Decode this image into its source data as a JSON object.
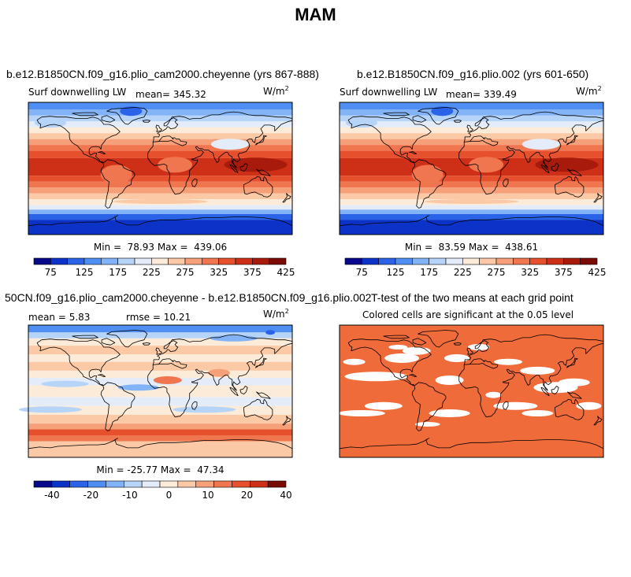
{
  "figure": {
    "title": "MAM"
  },
  "chart_data": [
    {
      "type": "heatmap",
      "title": "b.e12.B1850CN.f09_g16.plio_cam2000.cheyenne (yrs 867-888)",
      "variable": "Surf downwelling LW",
      "mean_text": "mean= 345.32",
      "units_base": "W/m",
      "units_exp": "2",
      "min": 78.93,
      "max": 439.06,
      "minmax_text": "Min =  78.93 Max =  439.06",
      "colorbar_labels": [
        "75",
        "125",
        "175",
        "225",
        "275",
        "325",
        "375",
        "425"
      ],
      "colorbar_colors": [
        "#08088c",
        "#0c33c8",
        "#2a63e8",
        "#4f8ef2",
        "#82b3f6",
        "#b6d3f8",
        "#e3ecf8",
        "#fcebd8",
        "#fbc9a6",
        "#f6a07a",
        "#f07650",
        "#e6502c",
        "#cd3016",
        "#a81a0c",
        "#7a0a04"
      ]
    },
    {
      "type": "heatmap",
      "title": "b.e12.B1850CN.f09_g16.plio.002 (yrs 601-650)",
      "variable": "Surf downwelling LW",
      "mean_text": "mean= 339.49",
      "units_base": "W/m",
      "units_exp": "2",
      "min": 83.59,
      "max": 438.61,
      "minmax_text": "Min =  83.59 Max =  438.61",
      "colorbar_labels": [
        "75",
        "125",
        "175",
        "225",
        "275",
        "325",
        "375",
        "425"
      ],
      "colorbar_colors": [
        "#08088c",
        "#0c33c8",
        "#2a63e8",
        "#4f8ef2",
        "#82b3f6",
        "#b6d3f8",
        "#e3ecf8",
        "#fcebd8",
        "#fbc9a6",
        "#f6a07a",
        "#f07650",
        "#e6502c",
        "#cd3016",
        "#a81a0c",
        "#7a0a04"
      ]
    },
    {
      "type": "heatmap",
      "title": "50CN.f09_g16.plio_cam2000.cheyenne - b.e12.B1850CN.f09_g16.plio.002",
      "mean_text": "mean =    5.83",
      "rmse_text": "rmse =   10.21",
      "units_base": "W/m",
      "units_exp": "2",
      "min": -25.77,
      "max": 47.34,
      "minmax_text": "Min = -25.77 Max =  47.34",
      "colorbar_labels": [
        "-40",
        "-20",
        "-10",
        "0",
        "10",
        "20",
        "40"
      ],
      "colorbar_colors": [
        "#08088c",
        "#0c33c8",
        "#2a63e8",
        "#4f8ef2",
        "#82b3f6",
        "#b6d3f8",
        "#e3ecf8",
        "#fcebd8",
        "#fbc9a6",
        "#f6a07a",
        "#f07650",
        "#e6502c",
        "#cd3016",
        "#7a0a04"
      ]
    },
    {
      "type": "heatmap",
      "title": "T-test of the two means at each grid point",
      "subtitle": "Colored cells are significant at the 0.05 level",
      "significant_color": "#f06b3a",
      "nonsignificant_color": "#ffffff"
    }
  ]
}
